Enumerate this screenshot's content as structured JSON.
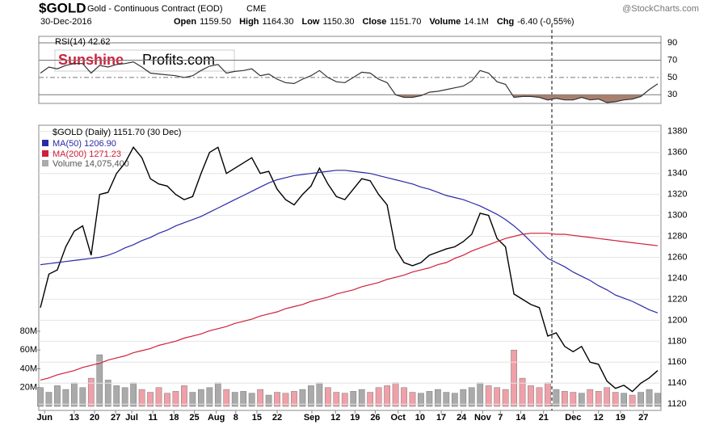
{
  "header": {
    "symbol": "$GOLD",
    "name": "Gold - Continuous Contract (EOD)",
    "exchange": "CME",
    "date": "30-Dec-2016",
    "watermark": "@StockCharts.com",
    "logo_a": "Sunshine",
    "logo_b": "Profits.com",
    "fields": [
      {
        "label": "Open",
        "value": "1159.50"
      },
      {
        "label": "High",
        "value": "1164.30"
      },
      {
        "label": "Low",
        "value": "1150.30"
      },
      {
        "label": "Close",
        "value": "1151.70"
      },
      {
        "label": "Volume",
        "value": "14.1M"
      },
      {
        "label": "Chg",
        "value": "-6.40 (-0.55%)"
      }
    ]
  },
  "chart_data": [
    {
      "type": "line",
      "title": "RSI(14) 42.62",
      "ylim": [
        20,
        97.5
      ],
      "yticks": [
        30,
        50,
        70,
        90
      ],
      "fill_below": 30,
      "series": [
        {
          "name": "RSI(14)",
          "color": "#333333",
          "values": [
            55,
            62,
            60,
            64,
            66,
            66,
            55,
            64,
            62,
            65,
            66,
            68,
            62,
            55,
            54,
            53,
            52,
            50,
            52,
            58,
            63,
            65,
            55,
            57,
            58,
            60,
            52,
            54,
            48,
            44,
            43,
            48,
            52,
            58,
            50,
            45,
            44,
            50,
            56,
            55,
            48,
            44,
            30,
            27,
            27,
            29,
            33,
            34,
            36,
            38,
            40,
            46,
            58,
            55,
            45,
            42,
            27,
            28,
            28,
            27,
            24,
            26,
            24,
            24,
            27,
            24,
            25,
            21,
            22,
            24,
            25,
            28,
            36,
            42.62
          ]
        }
      ]
    },
    {
      "type": "line",
      "title": "$GOLD (Daily) 1151.70 (30 Dec)",
      "ylim": [
        1114,
        1386
      ],
      "yticks": [
        1120,
        1140,
        1160,
        1180,
        1200,
        1220,
        1240,
        1260,
        1280,
        1300,
        1320,
        1340,
        1360,
        1380
      ],
      "xlim": [
        0,
        73
      ],
      "xticks": [
        {
          "value": 0.5,
          "label": "Jun"
        },
        {
          "value": 4.0,
          "label": "13"
        },
        {
          "value": 6.4,
          "label": "20"
        },
        {
          "value": 8.9,
          "label": "27"
        },
        {
          "value": 10.8,
          "label": "Jul"
        },
        {
          "value": 13.3,
          "label": "11"
        },
        {
          "value": 15.8,
          "label": "18"
        },
        {
          "value": 18.2,
          "label": "25"
        },
        {
          "value": 20.8,
          "label": "Aug"
        },
        {
          "value": 23.1,
          "label": "8"
        },
        {
          "value": 25.6,
          "label": "15"
        },
        {
          "value": 28.0,
          "label": "22"
        },
        {
          "value": 32.1,
          "label": "Sep"
        },
        {
          "value": 34.9,
          "label": "12"
        },
        {
          "value": 37.2,
          "label": "19"
        },
        {
          "value": 39.6,
          "label": "26"
        },
        {
          "value": 42.3,
          "label": "Oct"
        },
        {
          "value": 44.9,
          "label": "10"
        },
        {
          "value": 47.4,
          "label": "17"
        },
        {
          "value": 49.8,
          "label": "24"
        },
        {
          "value": 52.3,
          "label": "Nov"
        },
        {
          "value": 54.4,
          "label": "7"
        },
        {
          "value": 56.8,
          "label": "14"
        },
        {
          "value": 59.5,
          "label": "21"
        },
        {
          "value": 63.0,
          "label": "Dec"
        },
        {
          "value": 66.0,
          "label": "12"
        },
        {
          "value": 68.6,
          "label": "19"
        },
        {
          "value": 71.3,
          "label": "27"
        }
      ],
      "series": [
        {
          "name": "$GOLD",
          "color": "#000000",
          "values": [
            1212,
            1244,
            1248,
            1270,
            1285,
            1290,
            1262,
            1320,
            1322,
            1340,
            1350,
            1365,
            1355,
            1335,
            1330,
            1328,
            1320,
            1315,
            1318,
            1340,
            1360,
            1365,
            1340,
            1345,
            1350,
            1355,
            1340,
            1342,
            1325,
            1315,
            1310,
            1320,
            1328,
            1345,
            1330,
            1318,
            1315,
            1325,
            1335,
            1333,
            1320,
            1310,
            1268,
            1255,
            1252,
            1255,
            1262,
            1265,
            1268,
            1270,
            1275,
            1282,
            1302,
            1300,
            1278,
            1270,
            1225,
            1220,
            1215,
            1212,
            1185,
            1188,
            1175,
            1170,
            1175,
            1160,
            1158,
            1142,
            1135,
            1138,
            1132,
            1140,
            1145,
            1152
          ]
        },
        {
          "name": "MA(50) 1206.90",
          "color": "#2a2aa8",
          "values": [
            1253,
            1254,
            1255,
            1256,
            1257,
            1258,
            1259,
            1260,
            1262,
            1265,
            1269,
            1272,
            1276,
            1279,
            1283,
            1286,
            1290,
            1293,
            1296,
            1299,
            1303,
            1307,
            1311,
            1315,
            1319,
            1323,
            1327,
            1331,
            1334,
            1336,
            1338,
            1339,
            1340,
            1341,
            1342,
            1343,
            1343,
            1342,
            1341,
            1340,
            1338,
            1336,
            1334,
            1332,
            1330,
            1327,
            1325,
            1322,
            1319,
            1317,
            1315,
            1312,
            1309,
            1305,
            1301,
            1296,
            1290,
            1283,
            1275,
            1267,
            1259,
            1255,
            1251,
            1246,
            1242,
            1238,
            1233,
            1229,
            1224,
            1221,
            1218,
            1214,
            1210,
            1207
          ]
        },
        {
          "name": "MA(200) 1271.23",
          "color": "#d0203a",
          "values": [
            1143,
            1145,
            1148,
            1150,
            1152,
            1155,
            1157,
            1159,
            1162,
            1164,
            1166,
            1169,
            1171,
            1173,
            1176,
            1178,
            1180,
            1183,
            1185,
            1187,
            1190,
            1192,
            1194,
            1197,
            1199,
            1201,
            1204,
            1206,
            1208,
            1211,
            1213,
            1215,
            1218,
            1220,
            1222,
            1225,
            1227,
            1229,
            1232,
            1234,
            1236,
            1239,
            1241,
            1243,
            1246,
            1248,
            1250,
            1253,
            1255,
            1259,
            1262,
            1266,
            1269,
            1272,
            1275,
            1278,
            1280,
            1282,
            1283,
            1283,
            1283,
            1282,
            1282,
            1281,
            1280,
            1279,
            1278,
            1277,
            1276,
            1275,
            1274,
            1273,
            1272,
            1271
          ]
        }
      ]
    },
    {
      "type": "bar",
      "title": "Volume 14,075,400",
      "ylim": [
        0,
        80
      ],
      "yticks": [
        {
          "value": 20,
          "label": "20M"
        },
        {
          "value": 40,
          "label": "40M"
        },
        {
          "value": 60,
          "label": "60M"
        },
        {
          "value": 80,
          "label": "80M"
        }
      ],
      "colors": {
        "up": "#aaaaaa",
        "down": "#f0a0a8"
      },
      "values": [
        20,
        15,
        22,
        18,
        25,
        20,
        30,
        55,
        28,
        22,
        20,
        25,
        18,
        15,
        20,
        14,
        16,
        22,
        15,
        18,
        20,
        25,
        18,
        15,
        16,
        14,
        18,
        12,
        15,
        14,
        16,
        18,
        22,
        25,
        20,
        15,
        14,
        16,
        18,
        15,
        20,
        22,
        25,
        20,
        15,
        14,
        16,
        18,
        15,
        14,
        18,
        20,
        25,
        22,
        20,
        18,
        60,
        30,
        22,
        20,
        25,
        18,
        16,
        15,
        14,
        18,
        16,
        20,
        15,
        14,
        12,
        15,
        18,
        14
      ]
    }
  ]
}
